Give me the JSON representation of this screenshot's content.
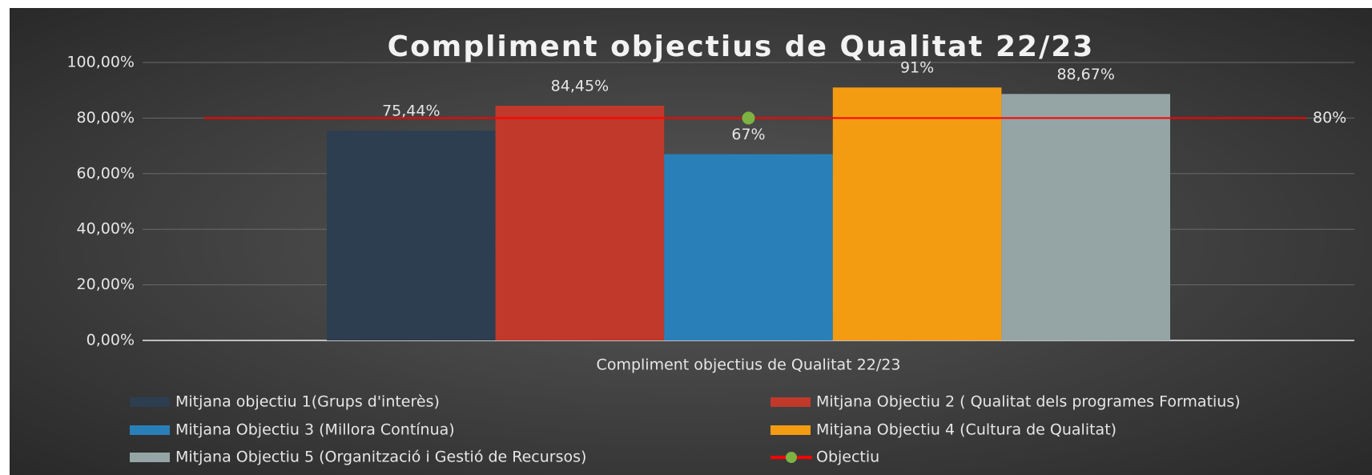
{
  "chart_data": {
    "type": "bar",
    "title": "Compliment objectius de Qualitat 22/23",
    "categories": [
      "Compliment objectius de Qualitat 22/23"
    ],
    "series": [
      {
        "name": "Mitjana objectiu 1(Grups d'interès)",
        "color": "#2c3e50",
        "values": [
          75.44
        ],
        "value_labels": [
          "75,44%"
        ]
      },
      {
        "name": "Mitjana Objectiu 2 ( Qualitat dels programes Formatius)",
        "color": "#c0392b",
        "values": [
          84.45
        ],
        "value_labels": [
          "84,45%"
        ]
      },
      {
        "name": "Mitjana Objectiu 3 (Millora Contínua)",
        "color": "#2980b9",
        "values": [
          67
        ],
        "value_labels": [
          "67%"
        ]
      },
      {
        "name": "Mitjana Objectiu 4 (Cultura de Qualitat)",
        "color": "#f39c12",
        "values": [
          91
        ],
        "value_labels": [
          "91%"
        ]
      },
      {
        "name": "Mitjana Objectiu 5 (Organització i Gestió de Recursos)",
        "color": "#95a5a6",
        "values": [
          88.67
        ],
        "value_labels": [
          "88,67%"
        ]
      },
      {
        "name": "Objectiu",
        "type": "line",
        "color": "#ff0000",
        "marker_color": "#7cb342",
        "values": [
          80
        ],
        "value_labels": [
          "80%"
        ]
      }
    ],
    "ylim": [
      0,
      100
    ],
    "yticks": [
      {
        "value": 0,
        "label": "0,00%"
      },
      {
        "value": 20,
        "label": "20,00%"
      },
      {
        "value": 40,
        "label": "40,00%"
      },
      {
        "value": 60,
        "label": "60,00%"
      },
      {
        "value": 80,
        "label": "80,00%"
      },
      {
        "value": 100,
        "label": "100,00%"
      }
    ],
    "grid": true,
    "legend": "bottom"
  }
}
